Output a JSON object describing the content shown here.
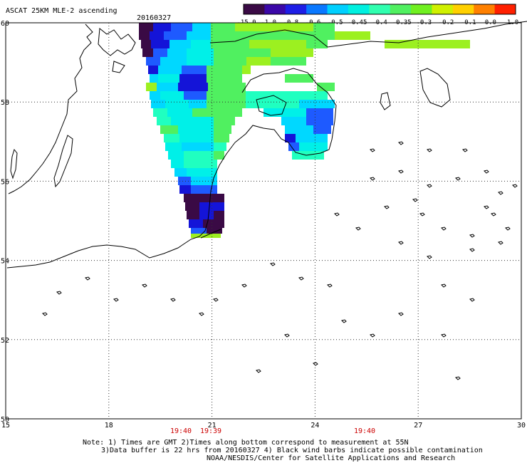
{
  "header": {
    "title": "ASCAT 25KM MLE-2 ascending",
    "date": "20160327"
  },
  "colorbar": {
    "labels": [
      "-15.0",
      "-1.0",
      "-0.8",
      "-0.6",
      "-0.5",
      "-0.45",
      "-0.4",
      "-0.35",
      "-0.3",
      "-0.2",
      "-0.1",
      "0.0",
      "1.0"
    ],
    "colors": [
      "#3a0a45",
      "#3b08a8",
      "#1e1ee6",
      "#0a78ff",
      "#00d0ff",
      "#00f0e0",
      "#30ffb0",
      "#50f060",
      "#70f020",
      "#d0f000",
      "#ffd000",
      "#ff8000",
      "#ff2000"
    ]
  },
  "map": {
    "lat_labels": [
      "60",
      "58",
      "56",
      "54",
      "52",
      "50"
    ],
    "lon_labels": [
      "15",
      "18",
      "21",
      "24",
      "27",
      "30"
    ],
    "lon_range": [
      15,
      30
    ],
    "lat_range": [
      50,
      60
    ],
    "pass_times": [
      "19:40",
      "19:39",
      "19:40"
    ],
    "swath_colors": {
      "dark": "#3a0a45",
      "deepblue": "#1414d8",
      "blue": "#1e5aff",
      "cyan": "#00d8ff",
      "aqua": "#00f0e8",
      "teal": "#20ffc0",
      "green": "#50f060",
      "lime": "#9cf020"
    }
  },
  "footer": {
    "note_line1": "Note: 1) Times are GMT 2)Times along bottom correspond to measurement at 55N",
    "note_line2": "3)Data buffer is 22 hrs from 20160327 4) Black wind barbs indicate possible contamination",
    "note_line3": "NOAA/NESDIS/Center for Satellite Applications and Research"
  }
}
